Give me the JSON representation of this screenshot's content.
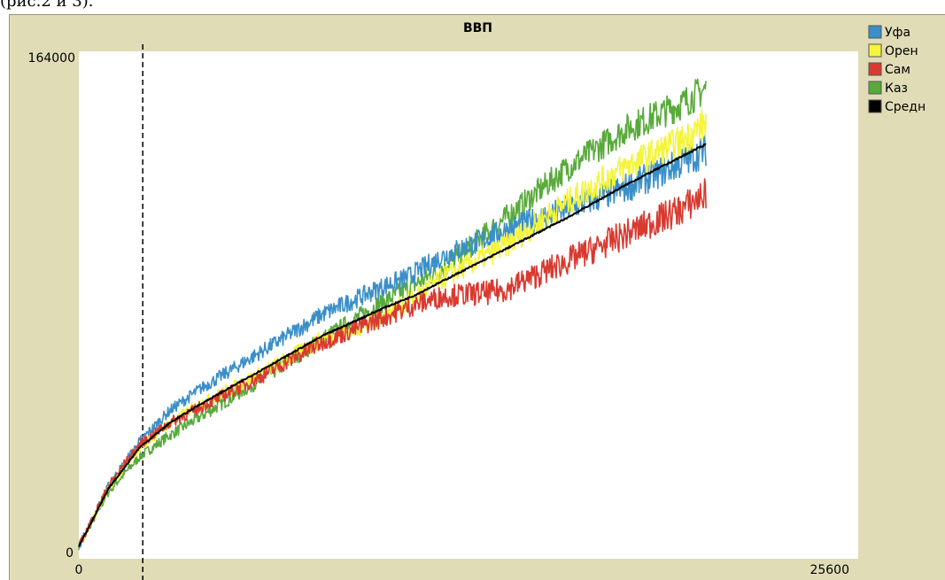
{
  "caption_fragment": "(рис.2 и 3).",
  "chart_data": {
    "type": "line",
    "title": "ВВП",
    "xlabel": "",
    "ylabel": "",
    "xlim": [
      0,
      25600
    ],
    "ylim": [
      0,
      164000
    ],
    "x_tick_labels": [
      "0",
      "25600"
    ],
    "y_tick_labels": [
      "0",
      "164000"
    ],
    "reference_line_x": 2100,
    "legend_position": "right",
    "series": [
      {
        "name": "Уфа",
        "color": "#3a8fc8",
        "x": [
          0,
          1000,
          2000,
          3000,
          4000,
          6000,
          8000,
          10000,
          10800,
          12000,
          14000,
          16000,
          18000,
          19800,
          20600
        ],
        "y": [
          4000,
          24000,
          38000,
          48000,
          55000,
          67000,
          79000,
          88000,
          91000,
          98000,
          106000,
          113000,
          120000,
          128000,
          132000
        ]
      },
      {
        "name": "Орен",
        "color": "#f4f43a",
        "x": [
          0,
          1000,
          2000,
          3000,
          4000,
          6000,
          8000,
          9600,
          10800,
          12000,
          14000,
          16000,
          18000,
          19800,
          20600
        ],
        "y": [
          4000,
          23000,
          36000,
          44000,
          50000,
          60000,
          71000,
          76000,
          83000,
          91000,
          101000,
          115000,
          127000,
          135000,
          141000
        ]
      },
      {
        "name": "Сам",
        "color": "#d83a30",
        "x": [
          0,
          1000,
          2000,
          3000,
          4000,
          6000,
          8000,
          10000,
          11000,
          12000,
          13500,
          14000,
          16000,
          18000,
          19800,
          20600
        ],
        "y": [
          4000,
          24000,
          37000,
          44000,
          49000,
          59000,
          70000,
          78000,
          82000,
          85000,
          86000,
          87000,
          96000,
          105000,
          113000,
          118000
        ]
      },
      {
        "name": "Каз",
        "color": "#58aa3a",
        "x": [
          0,
          1000,
          2000,
          3000,
          4000,
          6000,
          8000,
          10000,
          12000,
          14000,
          16000,
          18000,
          19800,
          20600
        ],
        "y": [
          4000,
          22000,
          33000,
          40000,
          46000,
          58000,
          71000,
          83000,
          94000,
          110000,
          126000,
          139000,
          147000,
          152000
        ]
      },
      {
        "name": "Средн",
        "color": "#000000",
        "x": [
          0,
          1000,
          2000,
          3000,
          4000,
          6000,
          8000,
          10000,
          11000,
          12000,
          14000,
          16000,
          18000,
          19800,
          20600
        ],
        "y": [
          4000,
          23000,
          36000,
          44000,
          50000,
          61000,
          72000,
          81000,
          85000,
          90000,
          100000,
          110000,
          121000,
          130000,
          134000
        ]
      }
    ]
  }
}
